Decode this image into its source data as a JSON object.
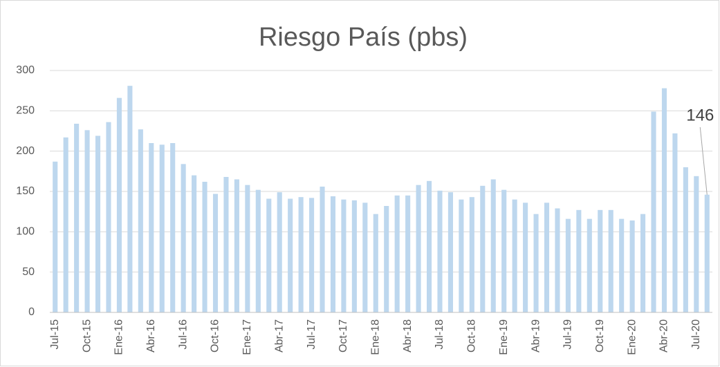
{
  "chart_data": {
    "type": "bar",
    "title": "Riesgo País (pbs)",
    "categories": [
      "Jul-15",
      null,
      null,
      "Oct-15",
      null,
      null,
      "Ene-16",
      null,
      null,
      "Abr-16",
      null,
      null,
      "Jul-16",
      null,
      null,
      "Oct-16",
      null,
      null,
      "Ene-17",
      null,
      null,
      "Abr-17",
      null,
      null,
      "Jul-17",
      null,
      null,
      "Oct-17",
      null,
      null,
      "Ene-18",
      null,
      null,
      "Abr-18",
      null,
      null,
      "Jul-18",
      null,
      null,
      "Oct-18",
      null,
      null,
      "Ene-19",
      null,
      null,
      "Abr-19",
      null,
      null,
      "Jul-19",
      null,
      null,
      "Oct-19",
      null,
      null,
      "Ene-20",
      null,
      null,
      "Abr-20",
      null,
      null,
      "Jul-20",
      null
    ],
    "values": [
      187,
      217,
      234,
      226,
      219,
      236,
      266,
      281,
      227,
      210,
      208,
      210,
      184,
      170,
      162,
      147,
      168,
      165,
      158,
      152,
      141,
      149,
      141,
      143,
      142,
      156,
      144,
      140,
      139,
      136,
      122,
      132,
      145,
      145,
      158,
      163,
      151,
      149,
      140,
      143,
      157,
      165,
      152,
      140,
      136,
      122,
      136,
      129,
      116,
      127,
      116,
      127,
      127,
      116,
      114,
      122,
      249,
      278,
      222,
      180,
      169,
      146
    ],
    "color": "#bdd7ee",
    "ylim": [
      0,
      300
    ],
    "yticks": [
      0,
      50,
      100,
      150,
      200,
      250,
      300
    ],
    "grid": true
  }
}
